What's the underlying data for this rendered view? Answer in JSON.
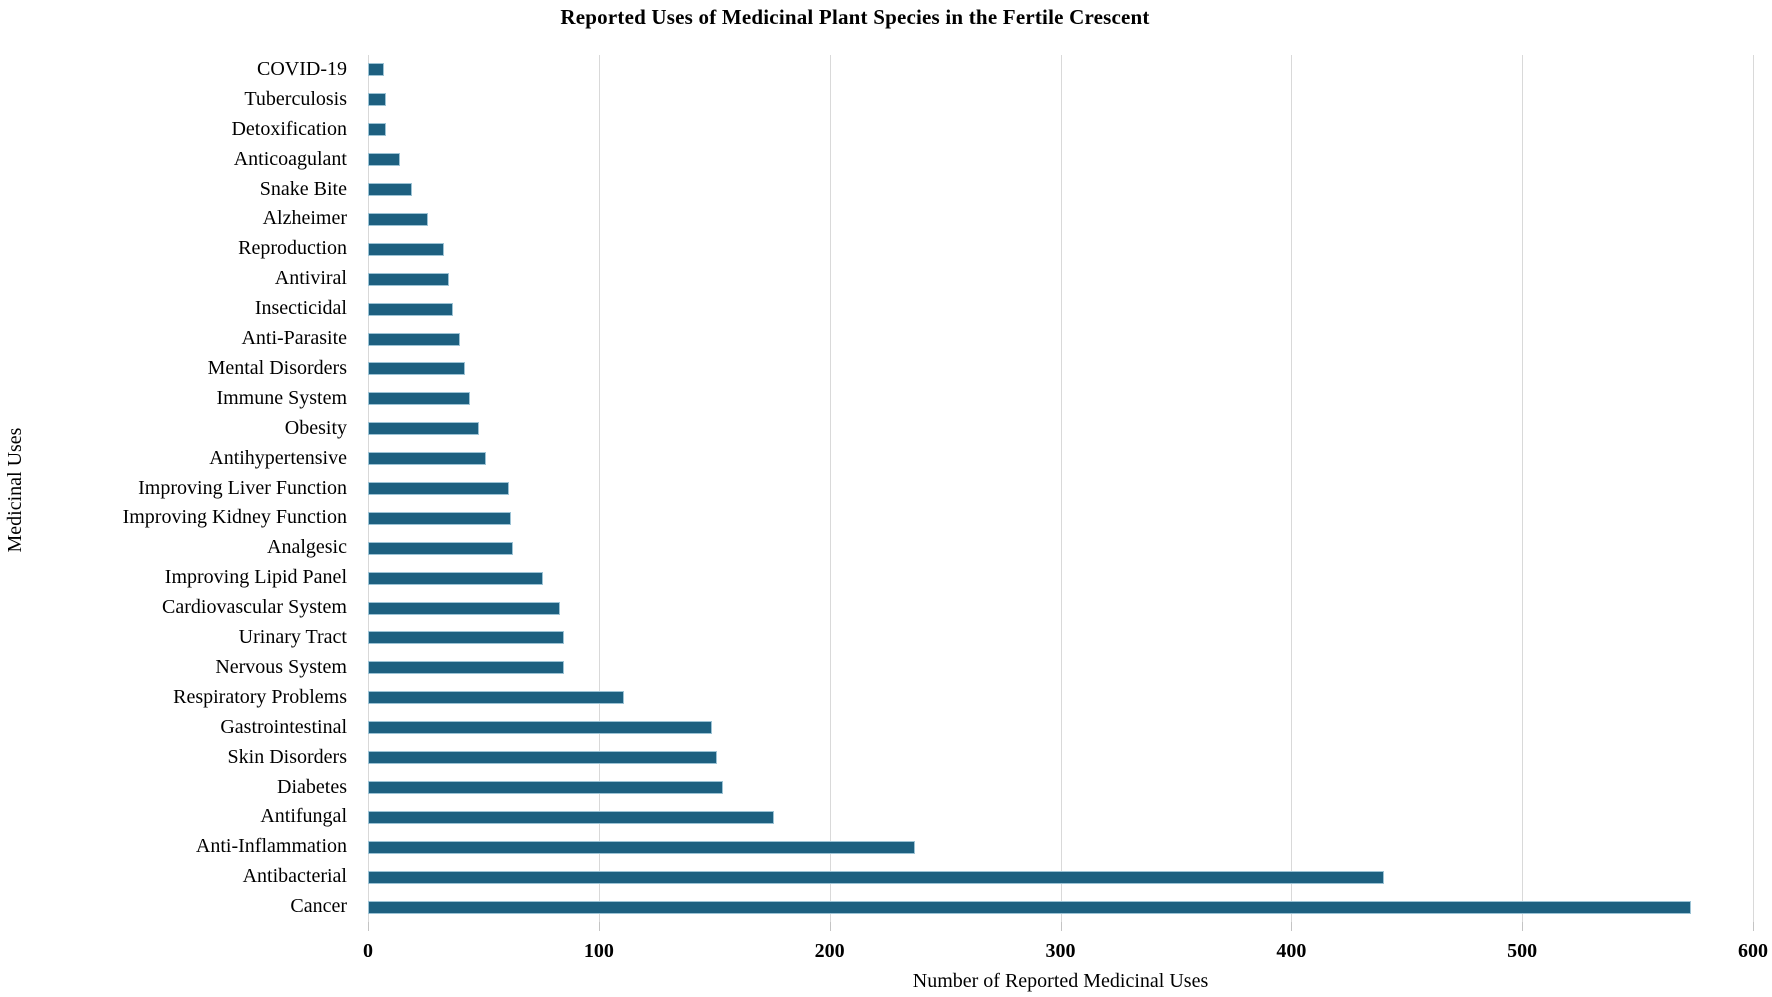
{
  "chart_data": {
    "type": "bar",
    "orientation": "horizontal",
    "title": "Reported Uses of Medicinal Plant Species in the Fertile Crescent",
    "xlabel": "Number of Reported Medicinal Uses",
    "ylabel": "Medicinal Uses",
    "xlim": [
      0,
      600
    ],
    "xticks": [
      0,
      100,
      200,
      300,
      400,
      500,
      600
    ],
    "grid": "vertical gridlines at each x tick, light gray, no horizontal gridlines",
    "legend": "none",
    "bar_color": "#1d6080",
    "bar_edge_color": "#9cc3d5",
    "gridline_color": "#d9d9d9",
    "categories": [
      "COVID-19",
      "Tuberculosis",
      "Detoxification",
      "Anticoagulant",
      "Snake Bite",
      "Alzheimer",
      "Reproduction",
      "Antiviral",
      "Insecticidal",
      "Anti-Parasite",
      "Mental Disorders",
      "Immune System",
      "Obesity",
      "Antihypertensive",
      "Improving Liver Function",
      "Improving Kidney Function",
      "Analgesic",
      "Improving Lipid Panel",
      "Cardiovascular System",
      "Urinary Tract",
      "Nervous System",
      "Respiratory Problems",
      "Gastrointestinal",
      "Skin Disorders",
      "Diabetes",
      "Antifungal",
      "Anti-Inflammation",
      "Antibacterial",
      "Cancer"
    ],
    "values": [
      7,
      8,
      8,
      14,
      19,
      26,
      33,
      35,
      37,
      40,
      42,
      44,
      48,
      51,
      61,
      62,
      63,
      76,
      83,
      85,
      85,
      111,
      149,
      151,
      154,
      176,
      237,
      440,
      573
    ]
  }
}
